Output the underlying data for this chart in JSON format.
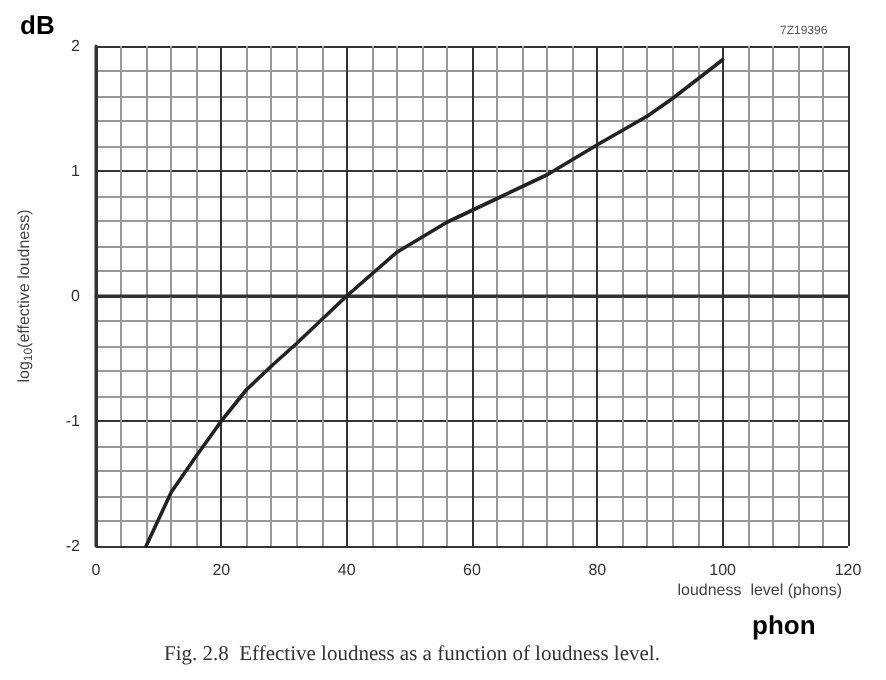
{
  "chart_data": {
    "type": "line",
    "xlabel": "loudness  level (phons)",
    "ylabel": "log$_{10}$(effective loudness)",
    "annotations": [
      "dB",
      "phon",
      "7Z19396",
      "Fig. 2.8  Effective loudness as a function of loudness level."
    ],
    "x": [
      8,
      12,
      16,
      20,
      24,
      28,
      32,
      36,
      40,
      48,
      56,
      64,
      72,
      80,
      88,
      92,
      100
    ],
    "series": [
      {
        "color": "#222222",
        "values": [
          -2,
          -1.57,
          -1.28,
          -1,
          -0.75,
          -0.56,
          -0.38,
          -0.19,
          0,
          0.35,
          0.59,
          0.78,
          0.97,
          1.21,
          1.44,
          1.58,
          1.89
        ]
      }
    ],
    "xlim": [
      0,
      120
    ],
    "xticks": [
      0,
      20,
      40,
      60,
      80,
      100,
      120
    ],
    "ylim": [
      -2,
      2
    ],
    "yticks": [
      -2,
      -1,
      0,
      1,
      2
    ],
    "grid": true,
    "marker": "none",
    "line_style": "solid"
  }
}
